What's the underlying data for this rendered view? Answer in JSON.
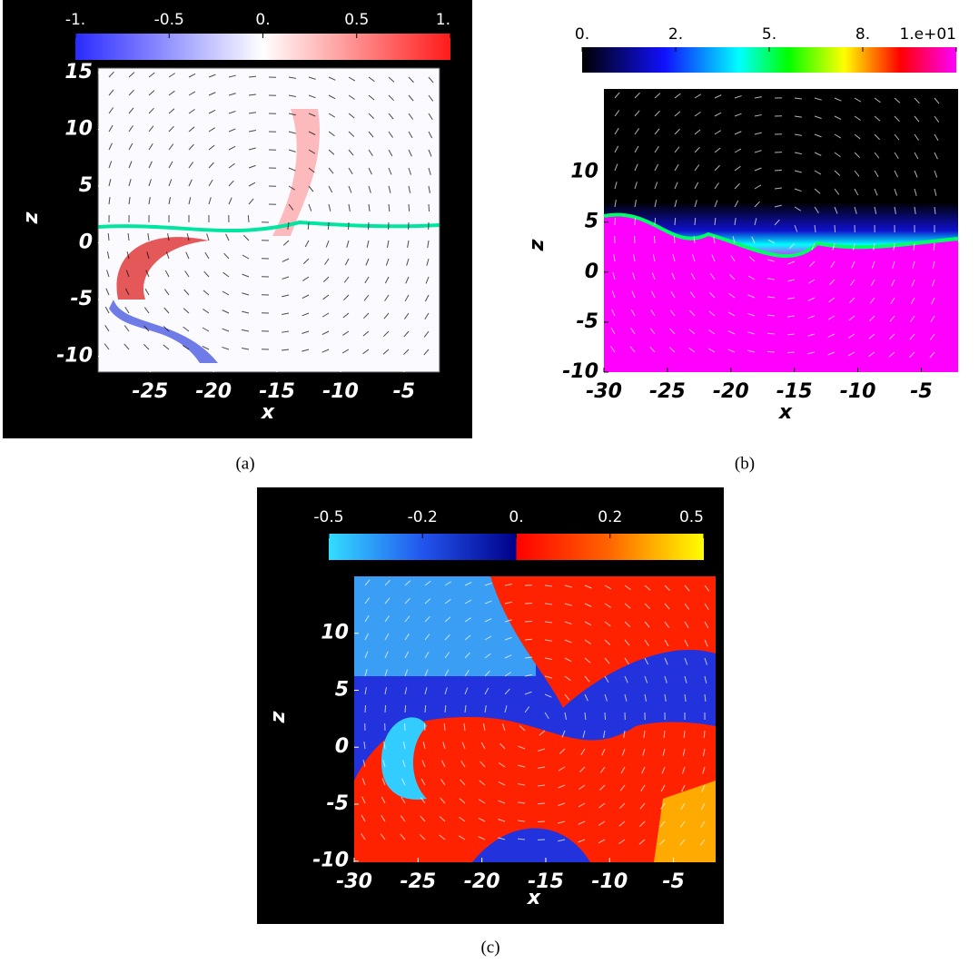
{
  "panels": [
    {
      "caption": "(a)",
      "xlabel": "x",
      "ylabel": "z",
      "xlim": [
        -29.1,
        -2.2
      ],
      "xticks": [
        -25,
        -20,
        -15,
        -10,
        -5
      ],
      "ylim": [
        -11.4,
        15.4
      ],
      "yticks": [
        15,
        10,
        5,
        0,
        -5,
        -10
      ],
      "colorbar_ticks": [
        {
          "value": -1,
          "label": "-1."
        },
        {
          "value": -0.5,
          "label": "-0.5"
        },
        {
          "value": 0,
          "label": "0."
        },
        {
          "value": 0.5,
          "label": "0.5"
        },
        {
          "value": 1,
          "label": "1."
        }
      ]
    },
    {
      "caption": "(b)",
      "xlabel": "x",
      "ylabel": "z",
      "xlim": [
        -30,
        -2.1
      ],
      "xticks": [
        -30,
        -25,
        -20,
        -15,
        -10,
        -5
      ],
      "ylim": [
        -10,
        18.3
      ],
      "yticks": [
        10,
        5,
        0,
        -5,
        -10
      ],
      "colorbar_ticks": [
        {
          "value": 0,
          "label": "0."
        },
        {
          "value": 2.5,
          "label": "2."
        },
        {
          "value": 5,
          "label": "5."
        },
        {
          "value": 7.5,
          "label": "8."
        },
        {
          "value": 10,
          "label": "1.e+01"
        }
      ]
    },
    {
      "caption": "(c)",
      "xlabel": "x",
      "ylabel": "z",
      "xlim": [
        -30,
        -1.7
      ],
      "xticks": [
        -30,
        -25,
        -20,
        -15,
        -10,
        -5
      ],
      "ylim": [
        -10.1,
        15
      ],
      "yticks": [
        10,
        5,
        0,
        -5,
        -10
      ],
      "colorbar_ticks": [
        {
          "value": -0.5,
          "label": "-0.5"
        },
        {
          "value": -0.25,
          "label": "-0.2"
        },
        {
          "value": 0,
          "label": "0."
        },
        {
          "value": 0.25,
          "label": "0.2"
        },
        {
          "value": 0.5,
          "label": "0.5"
        }
      ]
    }
  ]
}
